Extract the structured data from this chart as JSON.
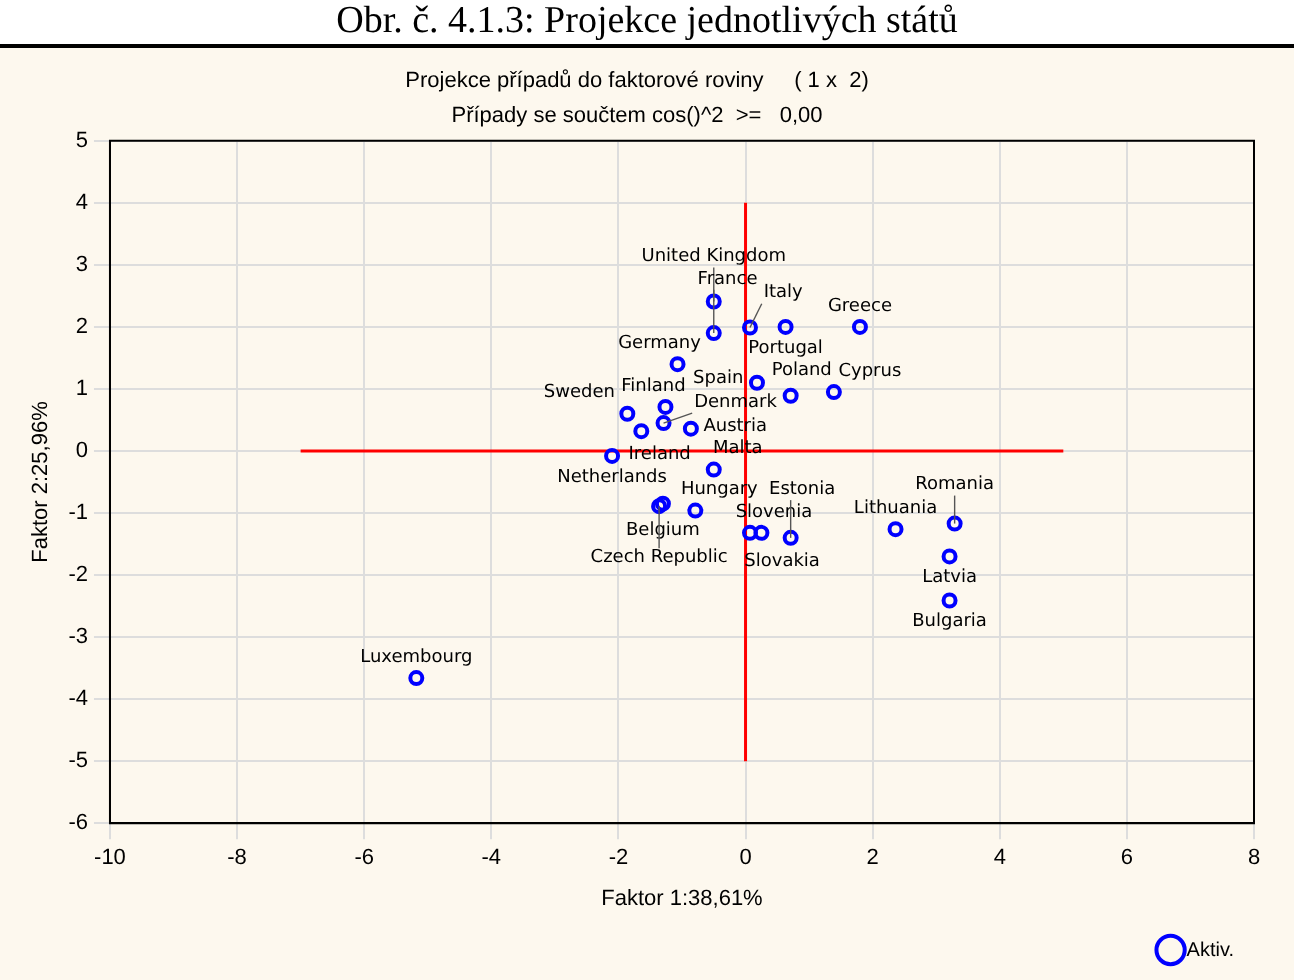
{
  "chart_data": {
    "type": "scatter",
    "title": "Projekce případů do faktorové roviny     ( 1 x  2)",
    "subtitle": "Případy se součtem cos()^2  >=   0,00",
    "xlabel": "Faktor 1:38,61%",
    "ylabel": "Faktor 2:25,96%",
    "xlim": [
      -10,
      8
    ],
    "xticks": [
      -10,
      -8,
      -6,
      -4,
      -2,
      0,
      2,
      4,
      6,
      8
    ],
    "ylim": [
      -6,
      5
    ],
    "yticks": [
      -6,
      -5,
      -4,
      -3,
      -2,
      -1,
      0,
      1,
      2,
      3,
      4,
      5
    ],
    "grid": true,
    "legend": "bottom right",
    "marker": "circle",
    "series": [
      {
        "name": "Aktiv.",
        "color": "#0000ff",
        "x": [
          -0.5,
          -0.5,
          0.07,
          0.63,
          1.8,
          -1.07,
          0.18,
          0.71,
          1.39,
          -1.26,
          -1.86,
          -1.29,
          -1.64,
          -0.86,
          -2.1,
          -0.5,
          -1.3,
          -1.36,
          -0.79,
          0.07,
          0.25,
          0.71,
          2.36,
          3.29,
          3.21,
          3.21,
          -5.18
        ],
        "values": [
          2.41,
          1.9,
          1.99,
          2.0,
          2.0,
          1.4,
          1.1,
          0.89,
          0.95,
          0.71,
          0.6,
          0.45,
          0.32,
          0.36,
          -0.08,
          -0.3,
          -0.85,
          -0.89,
          -0.96,
          -1.32,
          -1.32,
          -1.4,
          -1.26,
          -1.17,
          -1.7,
          -2.41,
          -3.66
        ]
      },
      {
        "type": "line",
        "color": "#ff0000",
        "marker": "none",
        "x": [
          -7,
          5
        ],
        "values": [
          0,
          0
        ]
      },
      {
        "type": "line",
        "color": "#ff0000",
        "marker": "none",
        "x": [
          0,
          0
        ],
        "values": [
          -5,
          4
        ]
      }
    ],
    "annotations": [
      "Obr. č. 4.1.3: Projekce jednotlivých států",
      {
        "text": "United Kingdom",
        "x": -0.5,
        "y": 2.41
      },
      {
        "text": "France",
        "x": -0.5,
        "y": 1.9
      },
      {
        "text": "Italy",
        "x": 0.07,
        "y": 1.99
      },
      {
        "text": "Portugal",
        "x": 0.63,
        "y": 2.0
      },
      {
        "text": "Greece",
        "x": 1.8,
        "y": 2.0
      },
      {
        "text": "Germany",
        "x": -1.07,
        "y": 1.4
      },
      {
        "text": "Spain",
        "x": 0.18,
        "y": 1.1
      },
      {
        "text": "Poland",
        "x": 0.71,
        "y": 0.89
      },
      {
        "text": "Cyprus",
        "x": 1.39,
        "y": 0.95
      },
      {
        "text": "Finland",
        "x": -1.26,
        "y": 0.71
      },
      {
        "text": "Sweden",
        "x": -1.86,
        "y": 0.6
      },
      {
        "text": "Denmark",
        "x": -1.29,
        "y": 0.45
      },
      {
        "text": "Ireland",
        "x": -1.64,
        "y": 0.32
      },
      {
        "text": "Austria",
        "x": -0.86,
        "y": 0.36
      },
      {
        "text": "Netherlands",
        "x": -2.1,
        "y": -0.08
      },
      {
        "text": "Malta",
        "x": -0.5,
        "y": -0.3
      },
      {
        "text": "Belgium",
        "x": -1.3,
        "y": -0.85
      },
      {
        "text": "Czech Republic",
        "x": -1.36,
        "y": -0.89
      },
      {
        "text": "Hungary",
        "x": -0.79,
        "y": -0.96
      },
      {
        "text": "Slovenia",
        "x": 0.07,
        "y": -1.32
      },
      {
        "text": "Slovakia",
        "x": 0.25,
        "y": -1.32
      },
      {
        "text": "Estonia",
        "x": 0.71,
        "y": -1.4
      },
      {
        "text": "Lithuania",
        "x": 2.36,
        "y": -1.26
      },
      {
        "text": "Romania",
        "x": 3.29,
        "y": -1.17
      },
      {
        "text": "Latvia",
        "x": 3.21,
        "y": -1.7
      },
      {
        "text": "Bulgaria",
        "x": 3.21,
        "y": -2.41
      },
      {
        "text": "Luxembourg",
        "x": -5.18,
        "y": -3.66
      }
    ]
  }
}
